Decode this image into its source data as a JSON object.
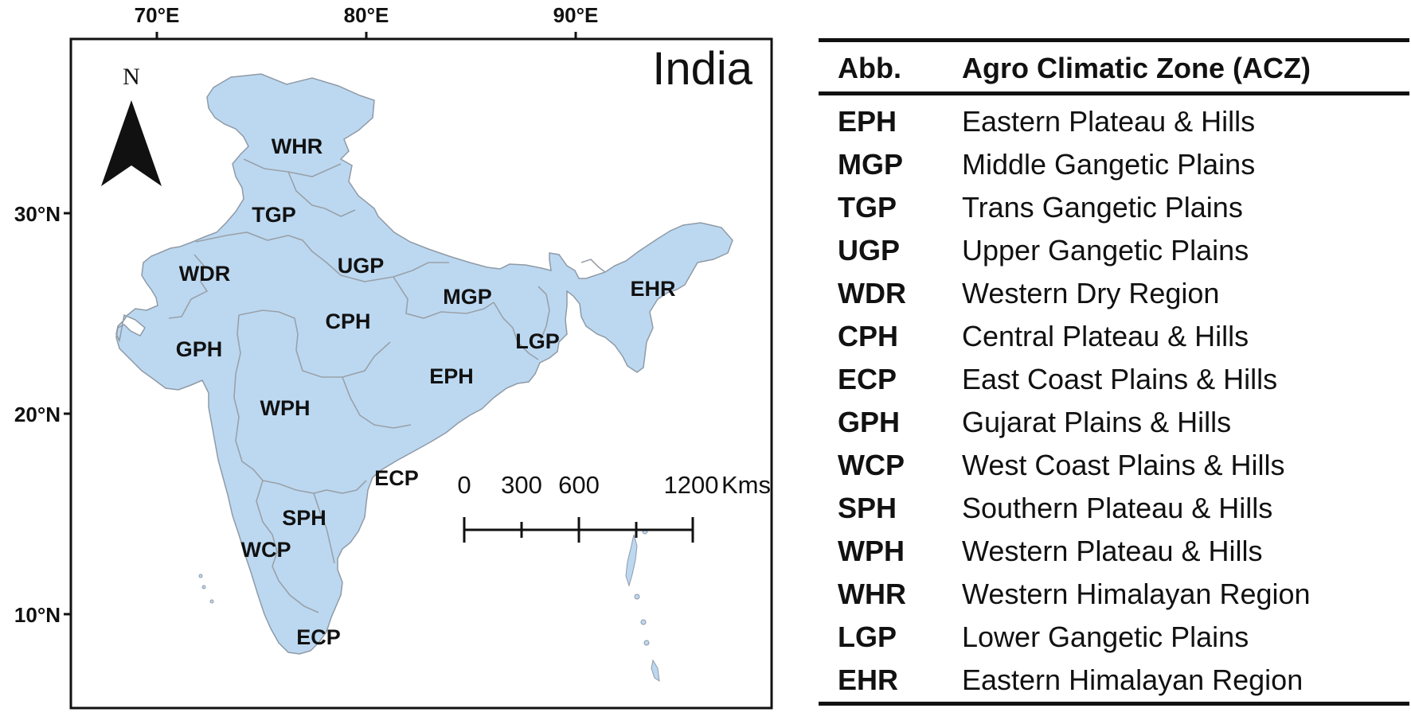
{
  "map": {
    "title": "India",
    "north_arrow_label": "N",
    "longitude_ticks": [
      "70°E",
      "80°E",
      "90°E"
    ],
    "latitude_ticks": [
      "30°N",
      "20°N",
      "10°N"
    ],
    "zone_labels": [
      "WHR",
      "TGP",
      "UGP",
      "WDR",
      "MGP",
      "EHR",
      "CPH",
      "GPH",
      "LGP",
      "EPH",
      "WPH",
      "ECP",
      "SPH",
      "WCP",
      "ECP"
    ],
    "scale_bar": {
      "labels": [
        "0",
        "300",
        "600",
        "1200"
      ],
      "unit": "Kms"
    },
    "colors": {
      "land": "#bcd8f1",
      "boundary": "#9aa1a8",
      "frame": "#111111"
    }
  },
  "legend": {
    "headers": [
      "Abb.",
      "Agro Climatic Zone (ACZ)"
    ],
    "rows": [
      {
        "abb": "EPH",
        "zone": "Eastern Plateau & Hills"
      },
      {
        "abb": "MGP",
        "zone": "Middle Gangetic Plains"
      },
      {
        "abb": "TGP",
        "zone": "Trans Gangetic Plains"
      },
      {
        "abb": "UGP",
        "zone": "Upper Gangetic Plains"
      },
      {
        "abb": "WDR",
        "zone": "Western Dry Region"
      },
      {
        "abb": "CPH",
        "zone": "Central Plateau & Hills"
      },
      {
        "abb": "ECP",
        "zone": "East Coast Plains & Hills"
      },
      {
        "abb": "GPH",
        "zone": "Gujarat Plains & Hills"
      },
      {
        "abb": "WCP",
        "zone": "West Coast Plains & Hills"
      },
      {
        "abb": "SPH",
        "zone": "Southern Plateau & Hills"
      },
      {
        "abb": "WPH",
        "zone": "Western Plateau & Hills"
      },
      {
        "abb": "WHR",
        "zone": "Western Himalayan Region"
      },
      {
        "abb": "LGP",
        "zone": "Lower Gangetic Plains"
      },
      {
        "abb": "EHR",
        "zone": "Eastern Himalayan Region"
      }
    ]
  }
}
